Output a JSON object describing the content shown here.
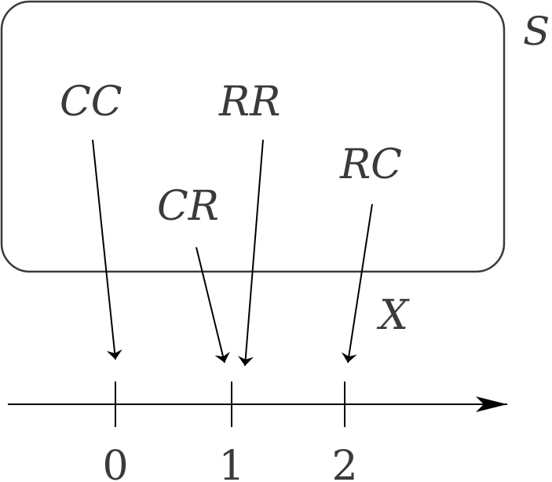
{
  "set_label": "S",
  "map_label": "X",
  "outcomes": {
    "cc": "CC",
    "rr": "RR",
    "rc": "RC",
    "cr": "CR"
  },
  "number_line": {
    "ticks": [
      "0",
      "1",
      "2"
    ]
  },
  "colors": {
    "stroke": "#3a3a3a",
    "arrow": "#000000"
  }
}
